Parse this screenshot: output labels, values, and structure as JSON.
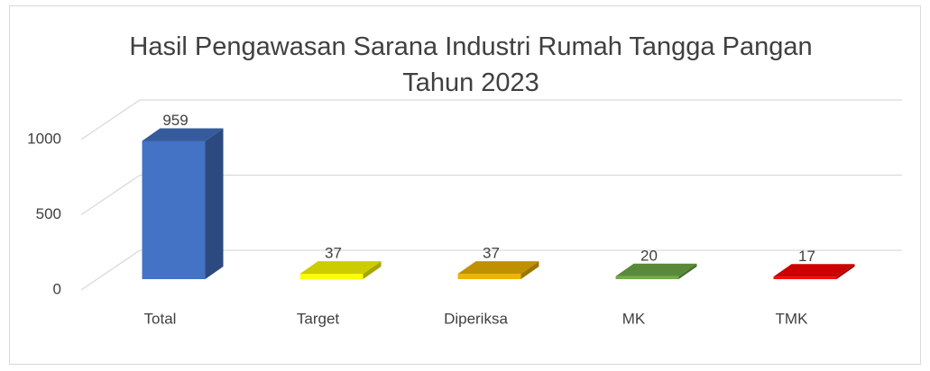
{
  "chart_data": {
    "type": "bar3d",
    "title": "Hasil Pengawasan Sarana Industri Rumah Tangga Pangan Tahun 2023",
    "categories": [
      "Total",
      "Target",
      "Diperiksa",
      "MK",
      "TMK"
    ],
    "values": [
      959,
      37,
      37,
      20,
      17
    ],
    "colors": [
      "#4472c4",
      "#ffff00",
      "#f0b400",
      "#70ad47",
      "#ff0000"
    ],
    "ylim": [
      0,
      1000
    ],
    "yticks": [
      0,
      500,
      1000
    ],
    "grid": true
  }
}
